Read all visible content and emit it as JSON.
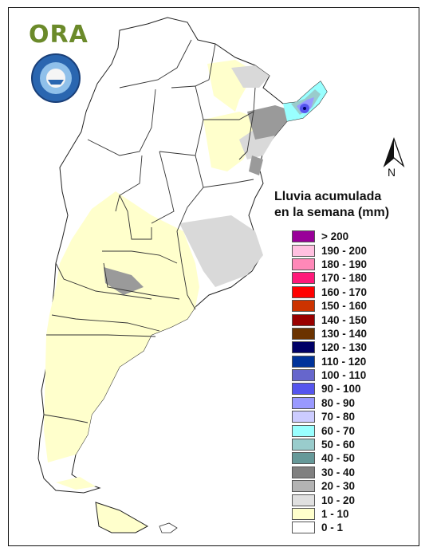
{
  "logo": {
    "text": "ORA"
  },
  "north": {
    "label": "N"
  },
  "legend": {
    "title_line1": "Lluvia acumulada",
    "title_line2": "en la semana (mm)",
    "items": [
      {
        "label": "> 200",
        "color": "#990099"
      },
      {
        "label": "190 - 200",
        "color": "#ffc0e0"
      },
      {
        "label": "180 - 190",
        "color": "#ff88b8"
      },
      {
        "label": "170 - 180",
        "color": "#ff1a7a"
      },
      {
        "label": "160 - 170",
        "color": "#ff0000"
      },
      {
        "label": "150 - 160",
        "color": "#cc3300"
      },
      {
        "label": "140 - 150",
        "color": "#990000"
      },
      {
        "label": "130 - 140",
        "color": "#6b3300"
      },
      {
        "label": "120 - 130",
        "color": "#000066"
      },
      {
        "label": "110 - 120",
        "color": "#00339a"
      },
      {
        "label": "100 - 110",
        "color": "#6666cc"
      },
      {
        "label": "90 - 100",
        "color": "#5555ee"
      },
      {
        "label": "80 - 90",
        "color": "#9999ff"
      },
      {
        "label": "70 - 80",
        "color": "#ccccff"
      },
      {
        "label": "60 - 70",
        "color": "#99ffff"
      },
      {
        "label": "50 - 60",
        "color": "#99cccc"
      },
      {
        "label": "40 - 50",
        "color": "#669999"
      },
      {
        "label": "30 - 40",
        "color": "#808080"
      },
      {
        "label": "20 - 30",
        "color": "#b3b3b3"
      },
      {
        "label": "10 - 20",
        "color": "#e0e0e0"
      },
      {
        "label": "1 - 10",
        "color": "#ffffcc"
      },
      {
        "label": "0 - 1",
        "color": "#ffffff"
      }
    ]
  }
}
